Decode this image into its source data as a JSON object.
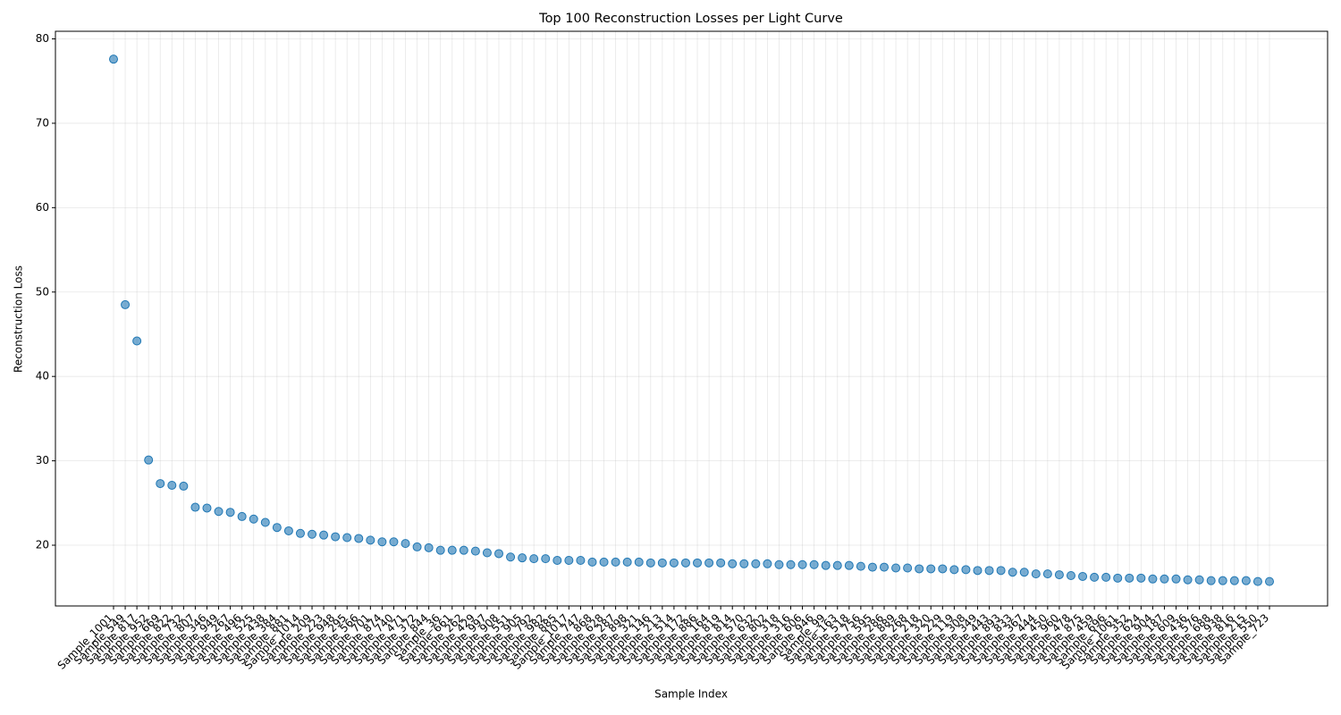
{
  "chart_data": {
    "type": "scatter",
    "title": "Top 100 Reconstruction Losses per Light Curve",
    "x_label": "Sample Index",
    "y_label": "Reconstruction Loss",
    "color": "#1f77b4",
    "grid": true,
    "ylim": [
      12.8,
      80.9
    ],
    "yticks": [
      20,
      30,
      40,
      50,
      60,
      70,
      80
    ],
    "categories": [
      "Sample_1001",
      "Sample_549",
      "Sample_817",
      "Sample_952",
      "Sample_669",
      "Sample_822",
      "Sample_732",
      "Sample_807",
      "Sample_346",
      "Sample_949",
      "Sample_267",
      "Sample_496",
      "Sample_525",
      "Sample_438",
      "Sample_384",
      "Sample_881",
      "Sample_1014",
      "Sample_209",
      "Sample_223",
      "Sample_948",
      "Sample_295",
      "Sample_566",
      "Sample_701",
      "Sample_874",
      "Sample_740",
      "Sample_471",
      "Sample_372",
      "Sample_844",
      "Sample_36",
      "Sample_661",
      "Sample_262",
      "Sample_429",
      "Sample_997",
      "Sample_908",
      "Sample_551",
      "Sample_905",
      "Sample_792",
      "Sample_982",
      "Sample_885",
      "Sample_1017",
      "Sample_747",
      "Sample_868",
      "Sample_628",
      "Sample_287",
      "Sample_898",
      "Sample_321",
      "Sample_146",
      "Sample_213",
      "Sample_514",
      "Sample_172",
      "Sample_886",
      "Sample_164",
      "Sample_819",
      "Sample_814",
      "Sample_570",
      "Sample_632",
      "Sample_802",
      "Sample_318",
      "Sample_316",
      "Sample_606",
      "Sample_946",
      "Sample_99",
      "Sample_163",
      "Sample_518",
      "Sample_756",
      "Sample_595",
      "Sample_286",
      "Sample_889",
      "Sample_268",
      "Sample_218",
      "Sample_320",
      "Sample_229",
      "Sample_119",
      "Sample_308",
      "Sample_349",
      "Sample_443",
      "Sample_893",
      "Sample_833",
      "Sample_367",
      "Sample_444",
      "Sample_450",
      "Sample_960",
      "Sample_478",
      "Sample_875",
      "Sample_459",
      "Sample_696",
      "Sample_1061",
      "Sample_352",
      "Sample_624",
      "Sample_904",
      "Sample_187",
      "Sample_609",
      "Sample_436",
      "Sample_576",
      "Sample_688",
      "Sample_938",
      "Sample_816",
      "Sample_215",
      "Sample_550",
      "Sample_723"
    ],
    "values": [
      77.6,
      48.5,
      44.2,
      30.1,
      27.3,
      27.1,
      27.0,
      24.5,
      24.4,
      24.0,
      23.9,
      23.4,
      23.1,
      22.7,
      22.1,
      21.7,
      21.4,
      21.3,
      21.2,
      21.0,
      20.9,
      20.8,
      20.6,
      20.4,
      20.4,
      20.2,
      19.8,
      19.7,
      19.4,
      19.4,
      19.4,
      19.3,
      19.1,
      19.0,
      18.6,
      18.5,
      18.4,
      18.4,
      18.2,
      18.2,
      18.2,
      18.0,
      18.0,
      18.0,
      18.0,
      18.0,
      17.9,
      17.9,
      17.9,
      17.9,
      17.9,
      17.9,
      17.9,
      17.8,
      17.8,
      17.8,
      17.8,
      17.7,
      17.7,
      17.7,
      17.7,
      17.6,
      17.6,
      17.6,
      17.5,
      17.4,
      17.4,
      17.3,
      17.3,
      17.2,
      17.2,
      17.2,
      17.1,
      17.1,
      17.0,
      17.0,
      17.0,
      16.8,
      16.8,
      16.6,
      16.6,
      16.5,
      16.4,
      16.3,
      16.2,
      16.2,
      16.1,
      16.1,
      16.1,
      16.0,
      16.0,
      16.0,
      15.9,
      15.9,
      15.8,
      15.8,
      15.8,
      15.8,
      15.7,
      15.7
    ]
  }
}
